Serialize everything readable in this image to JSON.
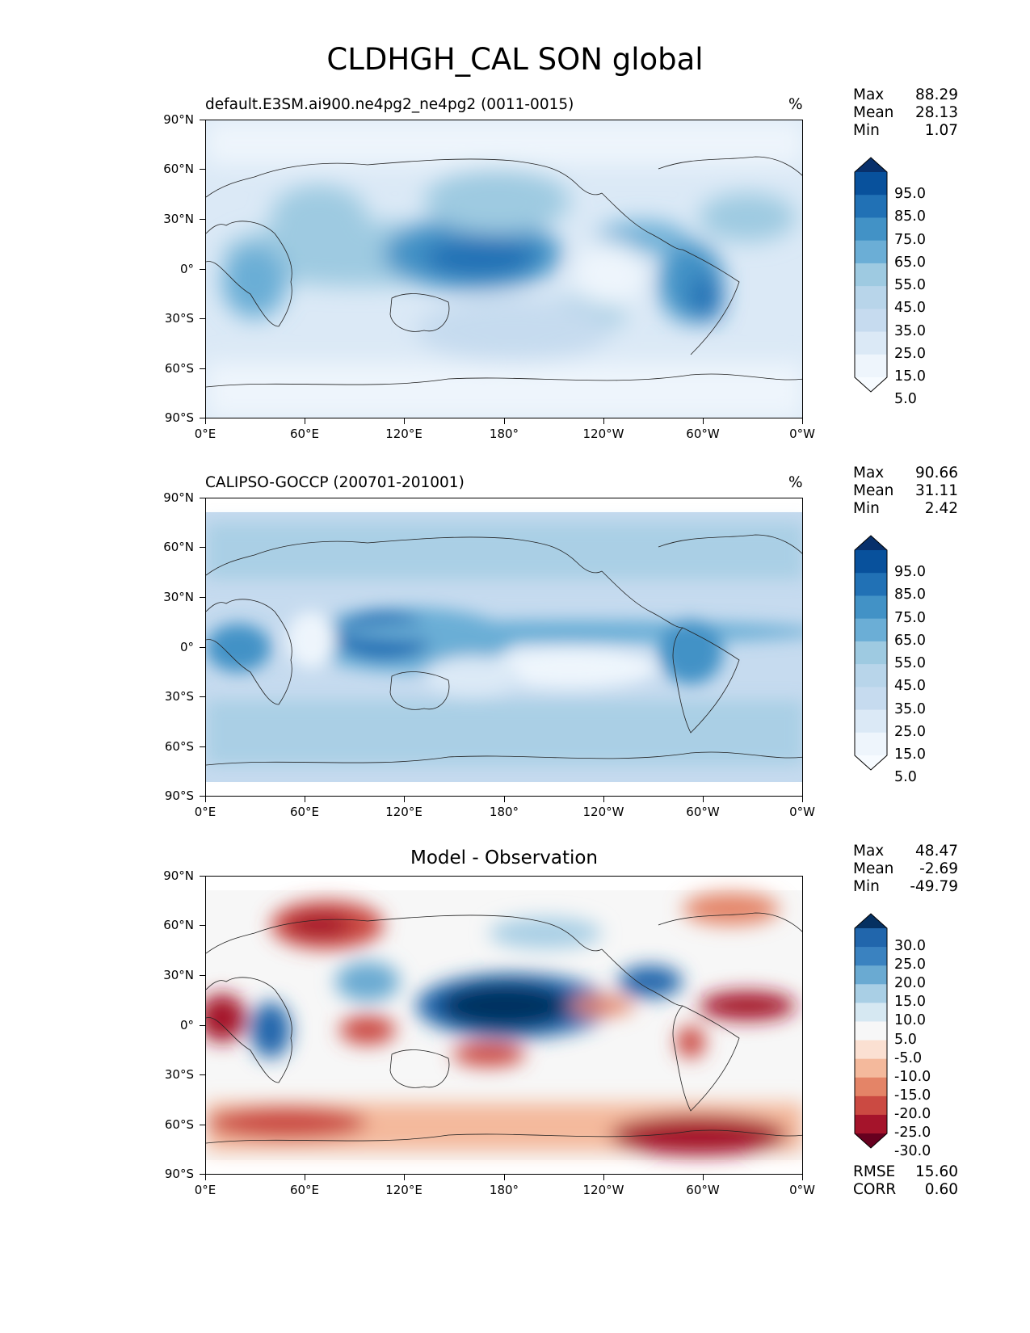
{
  "figure": {
    "title": "CLDHGH_CAL SON global"
  },
  "axes": {
    "y_ticks": [
      "90°N",
      "60°N",
      "30°N",
      "0°",
      "30°S",
      "60°S",
      "90°S"
    ],
    "x_ticks": [
      "0°E",
      "60°E",
      "120°E",
      "180°",
      "120°W",
      "60°W",
      "0°W"
    ]
  },
  "panels": [
    {
      "label": "default.E3SM.ai900.ne4pg2_ne4pg2 (0011-0015)",
      "units": "%",
      "stats": {
        "max_label": "Max",
        "max": "88.29",
        "mean_label": "Mean",
        "mean": "28.13",
        "min_label": "Min",
        "min": "1.07"
      },
      "colorbar_labels": [
        "95.0",
        "85.0",
        "75.0",
        "65.0",
        "55.0",
        "45.0",
        "35.0",
        "25.0",
        "15.0",
        "5.0"
      ],
      "colorbar_colors": [
        "#08306b",
        "#08519c",
        "#2171b5",
        "#4292c6",
        "#6baed6",
        "#9ecae1",
        "#b8d5ea",
        "#c6dbef",
        "#dbe9f6",
        "#eef5fc",
        "#f7fbff"
      ]
    },
    {
      "label": "CALIPSO-GOCCP (200701-201001)",
      "units": "%",
      "stats": {
        "max_label": "Max",
        "max": "90.66",
        "mean_label": "Mean",
        "mean": "31.11",
        "min_label": "Min",
        "min": "2.42"
      },
      "colorbar_labels": [
        "95.0",
        "85.0",
        "75.0",
        "65.0",
        "55.0",
        "45.0",
        "35.0",
        "25.0",
        "15.0",
        "5.0"
      ],
      "colorbar_colors": [
        "#08306b",
        "#08519c",
        "#2171b5",
        "#4292c6",
        "#6baed6",
        "#9ecae1",
        "#b8d5ea",
        "#c6dbef",
        "#dbe9f6",
        "#eef5fc",
        "#f7fbff"
      ]
    },
    {
      "label": "Model - Observation",
      "units": "",
      "stats": {
        "max_label": "Max",
        "max": "48.47",
        "mean_label": "Mean",
        "mean": "-2.69",
        "min_label": "Min",
        "min": "-49.79"
      },
      "colorbar_labels": [
        "30.0",
        "25.0",
        "20.0",
        "15.0",
        "10.0",
        "5.0",
        "-5.0",
        "-10.0",
        "-15.0",
        "-20.0",
        "-25.0",
        "-30.0"
      ],
      "colorbar_colors": [
        "#053061",
        "#2166ac",
        "#3a82c0",
        "#6aaad2",
        "#a9cfe5",
        "#d6e8f2",
        "#f7f7f7",
        "#fbe0d2",
        "#f4b99c",
        "#e48467",
        "#cb4a42",
        "#a5142b",
        "#67001f"
      ],
      "rmse_label": "RMSE",
      "rmse": "15.60",
      "corr_label": "CORR",
      "corr": "0.60"
    }
  ]
}
